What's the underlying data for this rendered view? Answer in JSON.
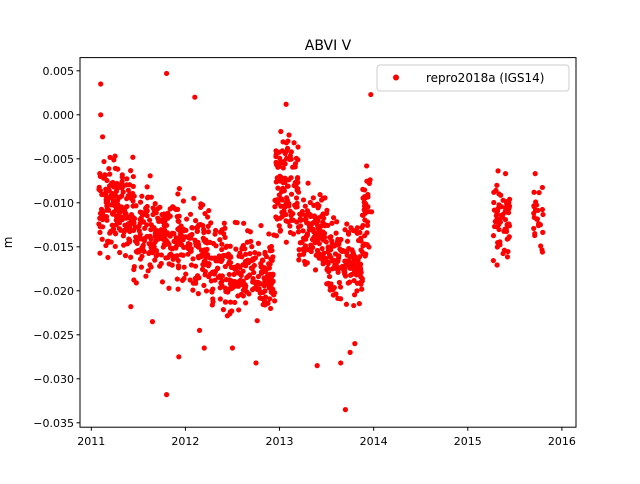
{
  "chart_data": {
    "type": "scatter",
    "title": "ABVI V",
    "xlabel": "",
    "ylabel": "m",
    "xlim": [
      2010.88,
      2016.15
    ],
    "ylim": [
      -0.0355,
      0.0065
    ],
    "xticks": [
      2011,
      2012,
      2013,
      2014,
      2015,
      2016
    ],
    "xtick_labels": [
      "2011",
      "2012",
      "2013",
      "2014",
      "2015",
      "2016"
    ],
    "yticks": [
      0.005,
      0.0,
      -0.005,
      -0.01,
      -0.015,
      -0.02,
      -0.025,
      -0.03,
      -0.035
    ],
    "ytick_labels": [
      "0.005",
      "0.000",
      "−0.005",
      "−0.010",
      "−0.015",
      "−0.020",
      "−0.025",
      "−0.030",
      "−0.035"
    ],
    "grid": false,
    "legend_position": "top-right",
    "colors": {
      "series": "#ff0000",
      "frame": "#000000",
      "background": "#ffffff"
    },
    "series": [
      {
        "name": "repro2018a (IGS14)",
        "marker": "circle",
        "clusters": [
          {
            "x_range": [
              2011.08,
              2011.45
            ],
            "y_center": -0.0105,
            "y_spread": 0.0045,
            "count": 170
          },
          {
            "x_range": [
              2011.45,
              2011.95
            ],
            "y_center": -0.0135,
            "y_spread": 0.0045,
            "count": 190
          },
          {
            "x_range": [
              2011.95,
              2012.25
            ],
            "y_center": -0.015,
            "y_spread": 0.0045,
            "count": 110
          },
          {
            "x_range": [
              2012.25,
              2012.95
            ],
            "y_center": -0.018,
            "y_spread": 0.0042,
            "count": 250
          },
          {
            "x_range": [
              2012.95,
              2013.2
            ],
            "y_center": -0.008,
            "y_spread": 0.005,
            "count": 110
          },
          {
            "x_range": [
              2013.2,
              2013.5
            ],
            "y_center": -0.013,
            "y_spread": 0.0042,
            "count": 120
          },
          {
            "x_range": [
              2013.5,
              2013.88
            ],
            "y_center": -0.0165,
            "y_spread": 0.0045,
            "count": 150
          },
          {
            "x_range": [
              2013.88,
              2013.98
            ],
            "y_center": -0.011,
            "y_spread": 0.0045,
            "count": 40
          },
          {
            "x_range": [
              2015.27,
              2015.45
            ],
            "y_center": -0.012,
            "y_spread": 0.0035,
            "count": 70
          },
          {
            "x_range": [
              2015.7,
              2015.8
            ],
            "y_center": -0.012,
            "y_spread": 0.0038,
            "count": 26
          }
        ],
        "points": [
          [
            2011.1,
            0.0035
          ],
          [
            2011.1,
            0.0
          ],
          [
            2011.12,
            -0.0025
          ],
          [
            2011.8,
            0.0047
          ],
          [
            2012.1,
            0.002
          ],
          [
            2011.8,
            -0.0318
          ],
          [
            2011.93,
            -0.0275
          ],
          [
            2013.7,
            -0.0335
          ],
          [
            2013.4,
            -0.0285
          ],
          [
            2013.97,
            0.0023
          ],
          [
            2013.07,
            0.0012
          ],
          [
            2013.65,
            -0.0282
          ],
          [
            2012.75,
            -0.0282
          ],
          [
            2012.5,
            -0.0265
          ],
          [
            2012.15,
            -0.0245
          ],
          [
            2011.42,
            -0.0218
          ],
          [
            2011.65,
            -0.0235
          ],
          [
            2012.2,
            -0.0265
          ],
          [
            2013.8,
            -0.026
          ],
          [
            2013.75,
            -0.027
          ]
        ]
      }
    ]
  }
}
